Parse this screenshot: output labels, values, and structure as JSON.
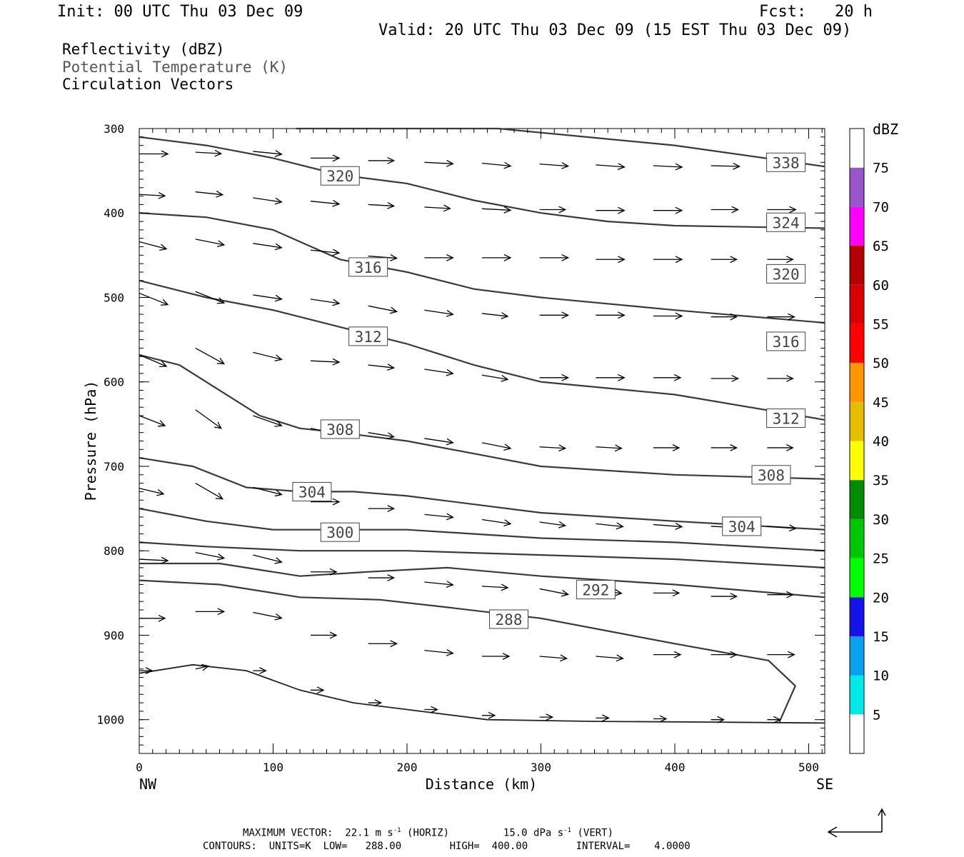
{
  "header": {
    "init": "Init: 00 UTC Thu 03 Dec 09",
    "fcst": "Fcst:   20 h",
    "valid": "Valid: 20 UTC Thu 03 Dec 09 (15 EST Thu 03 Dec 09)"
  },
  "fields": {
    "reflectivity": "Reflectivity (dBZ)",
    "theta": "Potential Temperature (K)",
    "vectors": "Circulation Vectors"
  },
  "footer": {
    "max_vector_label": "MAXIMUM VECTOR:",
    "horiz_value": "22.1 m s",
    "horiz_exp": "-1",
    "horiz_tag": "(HORIZ)",
    "vert_value": "15.0 dPa s",
    "vert_exp": "-1",
    "vert_tag": "(VERT)",
    "contours_line": "CONTOURS:  UNITS=K  LOW=   288.00        HIGH=  400.00        INTERVAL=    4.0000"
  },
  "chart_data": {
    "type": "line",
    "xlabel": "Distance (km)",
    "ylabel": "Pressure (hPa)",
    "xlim": [
      0,
      512
    ],
    "ylim": [
      1040,
      300
    ],
    "x_ticks": [
      0,
      100,
      200,
      300,
      400,
      500
    ],
    "y_ticks": [
      300,
      400,
      500,
      600,
      700,
      800,
      900,
      1000
    ],
    "x_end_labels": {
      "left": "NW",
      "right": "SE"
    },
    "colorbar": {
      "unit": "dBZ",
      "levels": [
        5,
        10,
        15,
        20,
        25,
        30,
        35,
        40,
        45,
        50,
        55,
        60,
        65,
        70,
        75
      ],
      "colors": [
        "#ffffff",
        "#00e8e8",
        "#0aa0f0",
        "#1414e6",
        "#00ff00",
        "#00c800",
        "#008c00",
        "#ffff00",
        "#e6be00",
        "#ff9600",
        "#ff0000",
        "#d80000",
        "#b40000",
        "#ff00ff",
        "#9a55c8",
        "#ffffff"
      ]
    },
    "contour_labels": [
      {
        "value": "338",
        "x": 483,
        "p": 340
      },
      {
        "value": "324",
        "x": 483,
        "p": 411
      },
      {
        "value": "320",
        "x": 150,
        "p": 356
      },
      {
        "value": "320",
        "x": 483,
        "p": 472
      },
      {
        "value": "316",
        "x": 171,
        "p": 464
      },
      {
        "value": "316",
        "x": 483,
        "p": 552
      },
      {
        "value": "312",
        "x": 171,
        "p": 546
      },
      {
        "value": "312",
        "x": 483,
        "p": 643
      },
      {
        "value": "308",
        "x": 150,
        "p": 656
      },
      {
        "value": "308",
        "x": 472,
        "p": 710
      },
      {
        "value": "304",
        "x": 129,
        "p": 730
      },
      {
        "value": "304",
        "x": 450,
        "p": 771
      },
      {
        "value": "300",
        "x": 150,
        "p": 778
      },
      {
        "value": "292",
        "x": 341,
        "p": 846
      },
      {
        "value": "288",
        "x": 276,
        "p": 881
      }
    ],
    "isentropes": [
      [
        [
          117,
          300
        ],
        [
          268,
          300
        ],
        [
          400,
          320
        ],
        [
          512,
          345
        ]
      ],
      [
        [
          0,
          310
        ],
        [
          50,
          320
        ],
        [
          100,
          335
        ],
        [
          150,
          355
        ],
        [
          200,
          365
        ],
        [
          250,
          385
        ],
        [
          300,
          400
        ],
        [
          350,
          410
        ],
        [
          400,
          415
        ],
        [
          512,
          418
        ]
      ],
      [
        [
          0,
          400
        ],
        [
          50,
          405
        ],
        [
          100,
          420
        ],
        [
          150,
          455
        ],
        [
          200,
          470
        ],
        [
          250,
          490
        ],
        [
          300,
          500
        ],
        [
          400,
          515
        ],
        [
          512,
          530
        ]
      ],
      [
        [
          0,
          480
        ],
        [
          50,
          500
        ],
        [
          100,
          515
        ],
        [
          150,
          535
        ],
        [
          200,
          555
        ],
        [
          250,
          580
        ],
        [
          300,
          600
        ],
        [
          400,
          615
        ],
        [
          512,
          645
        ]
      ],
      [
        [
          0,
          568
        ],
        [
          30,
          580
        ],
        [
          60,
          610
        ],
        [
          90,
          640
        ],
        [
          120,
          655
        ],
        [
          150,
          660
        ],
        [
          200,
          670
        ],
        [
          250,
          685
        ],
        [
          300,
          700
        ],
        [
          400,
          710
        ],
        [
          512,
          715
        ]
      ],
      [
        [
          0,
          690
        ],
        [
          40,
          700
        ],
        [
          80,
          725
        ],
        [
          120,
          730
        ],
        [
          160,
          730
        ],
        [
          200,
          735
        ],
        [
          250,
          745
        ],
        [
          300,
          755
        ],
        [
          400,
          765
        ],
        [
          512,
          775
        ]
      ],
      [
        [
          0,
          750
        ],
        [
          50,
          765
        ],
        [
          100,
          775
        ],
        [
          150,
          775
        ],
        [
          200,
          775
        ],
        [
          250,
          780
        ],
        [
          300,
          785
        ],
        [
          400,
          790
        ],
        [
          512,
          800
        ]
      ],
      [
        [
          0,
          790
        ],
        [
          50,
          795
        ],
        [
          120,
          800
        ],
        [
          200,
          800
        ],
        [
          300,
          805
        ],
        [
          400,
          810
        ],
        [
          512,
          820
        ]
      ],
      [
        [
          0,
          815
        ],
        [
          60,
          815
        ],
        [
          120,
          830
        ],
        [
          170,
          825
        ],
        [
          230,
          820
        ],
        [
          300,
          830
        ],
        [
          400,
          840
        ],
        [
          512,
          855
        ]
      ],
      [
        [
          0,
          835
        ],
        [
          60,
          840
        ],
        [
          120,
          855
        ],
        [
          180,
          858
        ],
        [
          230,
          867
        ],
        [
          300,
          880
        ],
        [
          400,
          910
        ],
        [
          470,
          930
        ],
        [
          490,
          960
        ],
        [
          478,
          1003
        ]
      ]
    ],
    "ground_line": [
      [
        0,
        945
      ],
      [
        40,
        935
      ],
      [
        80,
        942
      ],
      [
        120,
        965
      ],
      [
        160,
        980
      ],
      [
        200,
        988
      ],
      [
        260,
        1000
      ],
      [
        340,
        1002
      ],
      [
        440,
        1003
      ],
      [
        512,
        1004
      ]
    ],
    "vectors": [
      [
        0,
        330,
        40,
        0
      ],
      [
        42,
        328,
        36,
        2
      ],
      [
        85,
        327,
        40,
        4
      ],
      [
        128,
        335,
        40,
        0
      ],
      [
        171,
        338,
        36,
        0
      ],
      [
        213,
        340,
        40,
        2
      ],
      [
        256,
        341,
        40,
        4
      ],
      [
        299,
        342,
        40,
        3
      ],
      [
        341,
        343,
        40,
        3
      ],
      [
        384,
        344,
        40,
        2
      ],
      [
        427,
        344,
        40,
        1
      ],
      [
        469,
        344,
        40,
        0
      ],
      [
        0,
        378,
        36,
        2
      ],
      [
        42,
        375,
        38,
        4
      ],
      [
        85,
        382,
        40,
        6
      ],
      [
        128,
        386,
        40,
        4
      ],
      [
        171,
        390,
        36,
        2
      ],
      [
        213,
        393,
        36,
        2
      ],
      [
        256,
        395,
        40,
        2
      ],
      [
        299,
        396,
        36,
        0
      ],
      [
        341,
        397,
        40,
        0
      ],
      [
        384,
        397,
        40,
        0
      ],
      [
        427,
        396,
        38,
        0
      ],
      [
        469,
        396,
        40,
        0
      ],
      [
        0,
        434,
        38,
        10
      ],
      [
        42,
        431,
        40,
        8
      ],
      [
        85,
        436,
        40,
        6
      ],
      [
        128,
        444,
        40,
        4
      ],
      [
        171,
        451,
        40,
        3
      ],
      [
        213,
        453,
        40,
        0
      ],
      [
        256,
        453,
        40,
        0
      ],
      [
        299,
        453,
        40,
        0
      ],
      [
        341,
        455,
        40,
        0
      ],
      [
        384,
        455,
        40,
        0
      ],
      [
        427,
        455,
        36,
        0
      ],
      [
        469,
        455,
        36,
        0
      ],
      [
        0,
        495,
        40,
        16
      ],
      [
        42,
        493,
        40,
        16
      ],
      [
        85,
        497,
        40,
        6
      ],
      [
        128,
        502,
        40,
        6
      ],
      [
        171,
        510,
        40,
        8
      ],
      [
        213,
        515,
        40,
        6
      ],
      [
        256,
        519,
        36,
        4
      ],
      [
        299,
        521,
        40,
        0
      ],
      [
        341,
        521,
        40,
        0
      ],
      [
        384,
        522,
        40,
        0
      ],
      [
        427,
        523,
        36,
        0
      ],
      [
        469,
        523,
        38,
        0
      ],
      [
        0,
        568,
        38,
        16
      ],
      [
        42,
        560,
        40,
        22
      ],
      [
        85,
        565,
        40,
        10
      ],
      [
        128,
        575,
        40,
        2
      ],
      [
        171,
        580,
        36,
        4
      ],
      [
        213,
        585,
        40,
        6
      ],
      [
        256,
        592,
        36,
        6
      ],
      [
        299,
        595,
        40,
        0
      ],
      [
        341,
        595,
        40,
        0
      ],
      [
        384,
        595,
        38,
        0
      ],
      [
        427,
        596,
        38,
        0
      ],
      [
        469,
        596,
        36,
        0
      ],
      [
        0,
        640,
        36,
        14
      ],
      [
        42,
        633,
        36,
        26
      ],
      [
        85,
        640,
        40,
        14
      ],
      [
        128,
        655,
        40,
        8
      ],
      [
        171,
        660,
        36,
        6
      ],
      [
        213,
        667,
        40,
        6
      ],
      [
        256,
        672,
        40,
        8
      ],
      [
        299,
        677,
        36,
        2
      ],
      [
        341,
        677,
        36,
        2
      ],
      [
        384,
        678,
        36,
        0
      ],
      [
        427,
        678,
        36,
        0
      ],
      [
        469,
        678,
        36,
        0
      ],
      [
        0,
        726,
        34,
        8
      ],
      [
        42,
        720,
        38,
        22
      ],
      [
        85,
        725,
        40,
        10
      ],
      [
        128,
        742,
        40,
        0
      ],
      [
        171,
        750,
        36,
        0
      ],
      [
        213,
        757,
        40,
        4
      ],
      [
        256,
        763,
        40,
        6
      ],
      [
        299,
        766,
        36,
        5
      ],
      [
        341,
        768,
        38,
        4
      ],
      [
        384,
        769,
        40,
        3
      ],
      [
        427,
        771,
        40,
        2
      ],
      [
        469,
        771,
        40,
        3
      ],
      [
        0,
        810,
        40,
        2
      ],
      [
        42,
        802,
        40,
        8
      ],
      [
        85,
        805,
        40,
        10
      ],
      [
        128,
        825,
        36,
        0
      ],
      [
        171,
        832,
        36,
        0
      ],
      [
        213,
        837,
        40,
        4
      ],
      [
        256,
        842,
        36,
        2
      ],
      [
        299,
        845,
        40,
        8
      ],
      [
        341,
        847,
        36,
        4
      ],
      [
        384,
        850,
        36,
        0
      ],
      [
        427,
        854,
        36,
        0
      ],
      [
        469,
        852,
        36,
        0
      ],
      [
        0,
        880,
        36,
        0
      ],
      [
        42,
        872,
        40,
        0
      ],
      [
        85,
        873,
        40,
        8
      ],
      [
        128,
        900,
        36,
        0
      ],
      [
        171,
        910,
        40,
        0
      ],
      [
        213,
        918,
        40,
        4
      ],
      [
        256,
        925,
        38,
        0
      ],
      [
        299,
        925,
        38,
        3
      ],
      [
        341,
        925,
        38,
        3
      ],
      [
        384,
        923,
        38,
        0
      ],
      [
        427,
        923,
        36,
        0
      ],
      [
        469,
        923,
        38,
        0
      ],
      [
        0,
        942,
        18,
        0
      ],
      [
        42,
        940,
        18,
        -4
      ],
      [
        85,
        942,
        18,
        0
      ],
      [
        128,
        965,
        18,
        0
      ],
      [
        171,
        980,
        18,
        0
      ],
      [
        213,
        988,
        18,
        0
      ],
      [
        256,
        995,
        18,
        0
      ],
      [
        299,
        997,
        18,
        0
      ],
      [
        341,
        998,
        18,
        0
      ],
      [
        384,
        999,
        18,
        0
      ],
      [
        427,
        1000,
        18,
        0
      ],
      [
        469,
        1000,
        18,
        0
      ]
    ]
  }
}
